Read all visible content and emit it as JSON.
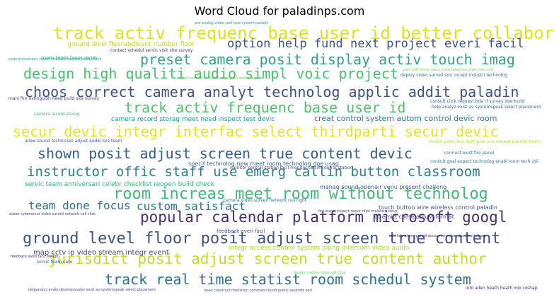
{
  "chart_data": {
    "type": "wordcloud",
    "title": "Word Cloud for paladinps.com",
    "phrases": [
      {
        "text": "track activ frequenc base user id better collabor",
        "color": "#dbe31e"
      },
      {
        "text": "option help fund next project everi facil",
        "color": "#3a538b"
      },
      {
        "text": "preset camera posit display activ touch imag",
        "color": "#2fa58c"
      },
      {
        "text": "design high qualiti audio simpl voic project",
        "color": "#48c16e"
      },
      {
        "text": "choos correct camera analyt technolog applic addit paladin",
        "color": "#3a538b"
      },
      {
        "text": "track activ frequenc base user id",
        "color": "#4dc36b"
      },
      {
        "text": "secur devic integr interfac select thirdparti secur devic",
        "color": "#e5e419"
      },
      {
        "text": "shown posit adjust screen true content devic",
        "color": "#31628d"
      },
      {
        "text": "instructor offic staff use emerg callin button classroom",
        "color": "#25848e"
      },
      {
        "text": "room increas meet room without technolog",
        "color": "#3dbc74"
      },
      {
        "text": "popular calendar platform microsoft googl",
        "color": "#472c7a"
      },
      {
        "text": "team done focus",
        "color": "#2d708e"
      },
      {
        "text": "custom satisfact",
        "color": "#2b748e"
      },
      {
        "text": "ground level floor posit adjust screen true content",
        "color": "#3b528b"
      },
      {
        "text": "jurisdict posit adjust screen true content author",
        "color": "#c2df23"
      },
      {
        "text": "track real time statist room schedul system",
        "color": "#2c728e"
      },
      {
        "text": "creat control system autom control devic room",
        "color": "#2a788e"
      },
      {
        "text": "ground level floorabdivent number floor",
        "color": "#b5de2b"
      },
      {
        "text": "specif technolog new meet room technolog doe usag",
        "color": "#31688e"
      },
      {
        "text": "servic team anniversari celebr checklist reopen build check",
        "color": "#35b779"
      },
      {
        "text": "manag sound openair venu present challeng",
        "color": "#34618d"
      },
      {
        "text": "map cctv ip video stream integr event",
        "color": "#3e4a89"
      },
      {
        "text": "integr access control system along intercom video audio",
        "color": "#a2da37"
      },
      {
        "text": "camera record storag meet need inspect test devic",
        "color": "#1f9a8a"
      },
      {
        "text": "contact schedul servic visit site survey",
        "color": "#46327e"
      },
      {
        "text": "room team favor room",
        "color": "#22a884"
      },
      {
        "text": "touch button wire wireless control paladin",
        "color": "#39568c"
      },
      {
        "text": "qt emitt come adjust format",
        "color": "#3f4788"
      },
      {
        "text": "camera video surveil network run right",
        "color": "#2a788e"
      },
      {
        "text": "feedback everi facil",
        "color": "#3e4a89"
      },
      {
        "text": "servic team care",
        "color": "#32658e"
      },
      {
        "text": "consult click request bda rf survey doe build",
        "color": "#32648e"
      },
      {
        "text": "help analyz exist av systemspeak select placement",
        "color": "#31688e"
      },
      {
        "text": "mount press box light pole scoreboard paladin team",
        "color": "#addc30"
      },
      {
        "text": "connect exist fire panel",
        "color": "#2a788e"
      },
      {
        "text": "deploy video surveil sinc incept industri technolog",
        "color": "#2e6f8e"
      },
      {
        "text": "allow sound technician adjust audio live team",
        "color": "#3b528b"
      },
      {
        "text": "monitor central station facil monitor certifi central station",
        "color": "#443a83"
      },
      {
        "text": "consult goal expect technolog enabl room tech util",
        "color": "#2b758e"
      },
      {
        "text": "mani fire extinguish need build site survey",
        "color": "#414487"
      },
      {
        "text": "camera record storag",
        "color": "#38b977"
      },
      {
        "text": "design custom solut call click",
        "color": "#5ec962"
      },
      {
        "text": "info allen heath heath mix roshap",
        "color": "#481f70"
      },
      {
        "text": "helpanalyz evalu developanalyz exist av systemspeak select placement",
        "color": "#404688"
      },
      {
        "text": "need construct multistori commerci build public assembl seri",
        "color": "#3e4c8a"
      },
      {
        "text": "fire alarm inspect requir nfpa maintain cover",
        "color": "#3f4889"
      },
      {
        "text": "auton cybersecur video surveil network call click",
        "color": "#453781"
      },
      {
        "text": "and fals alarm provid account number password direct",
        "color": "#46307e"
      },
      {
        "text": "code anniversari celebr checklist reopen build check",
        "color": "#1f9e89"
      },
      {
        "text": "part fulli integr secur solut telephon entri intercom",
        "color": "#7ad151"
      },
      {
        "text": "contact schedul servic visit paladin servic depart",
        "color": "#5ec962"
      },
      {
        "text": "feedback everi facil design",
        "color": "#482878"
      },
      {
        "text": "pro analog video tool new system paladin",
        "color": "#1f9e89"
      }
    ]
  }
}
